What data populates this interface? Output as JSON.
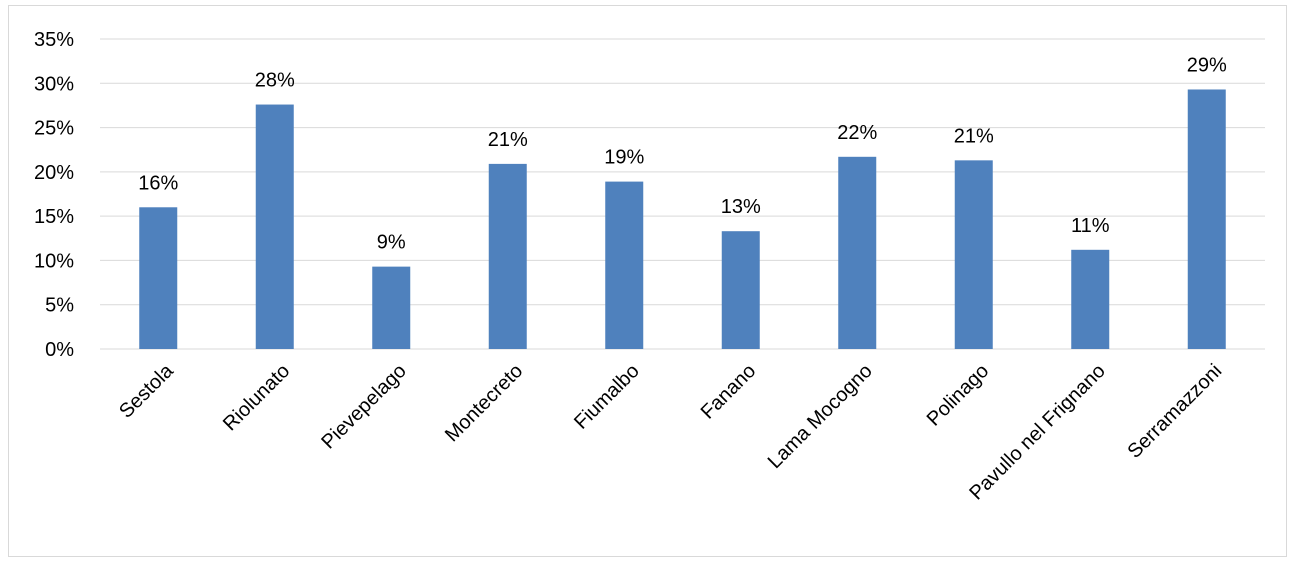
{
  "chart_data": {
    "type": "bar",
    "categories": [
      "Sestola",
      "Riolunato",
      "Pievepelago",
      "Montecreto",
      "Fiumalbo",
      "Fanano",
      "Lama Mocogno",
      "Polinago",
      "Pavullo nel Frignano",
      "Serramazzoni"
    ],
    "values": [
      16,
      27.6,
      9.3,
      20.9,
      18.9,
      13.3,
      21.7,
      21.3,
      11.2,
      29.3
    ],
    "data_labels": [
      "16%",
      "28%",
      "9%",
      "21%",
      "19%",
      "13%",
      "22%",
      "21%",
      "11%",
      "29%"
    ],
    "y_ticks": [
      "0%",
      "5%",
      "10%",
      "15%",
      "20%",
      "25%",
      "30%",
      "35%"
    ],
    "ylim": [
      0,
      35
    ],
    "y_unit": "%",
    "grid": true,
    "legend": false,
    "bar_color": "#4f81bd"
  }
}
